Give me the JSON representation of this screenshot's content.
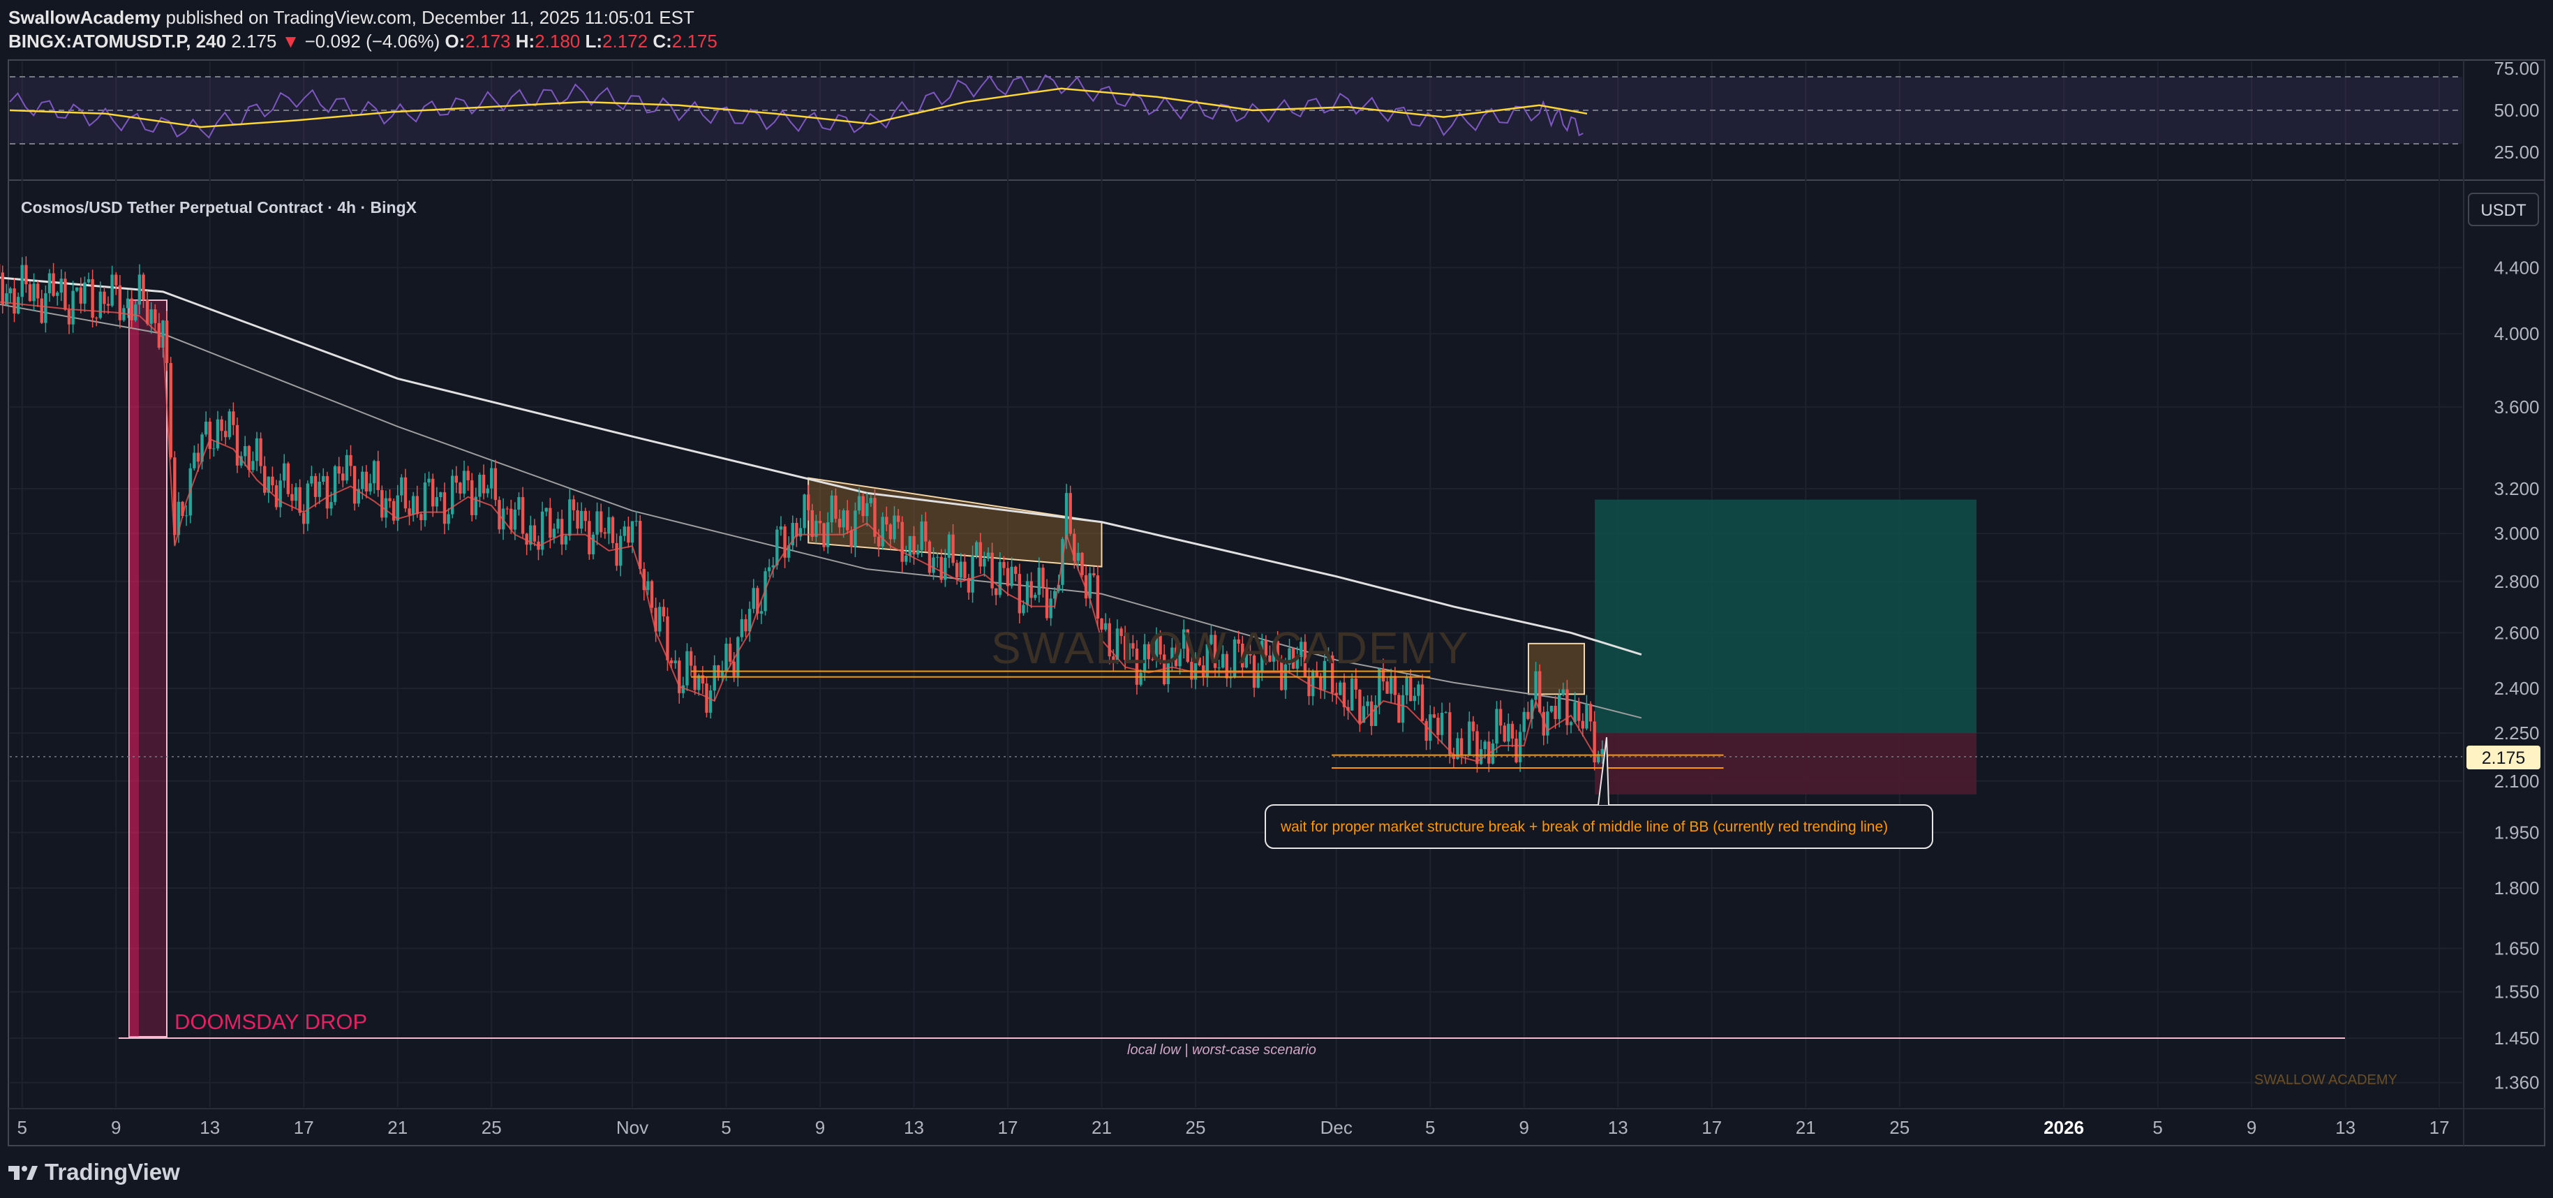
{
  "header": {
    "author": "SwallowAcademy",
    "published_text": "published on TradingView.com, December 11, 2025 11:05:01 EST",
    "symbol": "BINGX:ATOMUSDT.P, 240",
    "last": "2.175",
    "change_arrow": "▼",
    "change": "−0.092 (−4.06%)",
    "o_label": "O:",
    "o_value": "2.173",
    "h_label": "H:",
    "h_value": "2.180",
    "l_label": "L:",
    "l_value": "2.172",
    "c_label": "C:",
    "c_value": "2.175"
  },
  "footer": {
    "brand": "TradingView"
  },
  "colors": {
    "background": "#131722",
    "up": "#26a69a",
    "down": "#ef5350",
    "rsi": "#7e57c2",
    "rsi_ma": "#fdd835",
    "orange_line": "#ff9800",
    "doomsday": "#e91e63",
    "tp_zone": "#0f4f49",
    "sl_zone": "#4a1c2e"
  },
  "chart_data": [
    {
      "type": "line",
      "panel": "RSI",
      "ylim": [
        15,
        80
      ],
      "yticks": [
        "75.00",
        "50.00",
        "25.00"
      ],
      "levels": [
        70,
        50,
        30
      ],
      "series": [],
      "x": [
        0,
        10,
        20,
        30,
        40,
        50,
        60,
        70,
        80,
        90,
        100,
        110,
        120,
        130,
        140,
        150,
        160,
        165
      ],
      "rsi": [
        55,
        45,
        38,
        58,
        47,
        55,
        60,
        50,
        44,
        42,
        64,
        66,
        52,
        48,
        55,
        41,
        50,
        38
      ],
      "rsi_ma": [
        50,
        48,
        40,
        44,
        49,
        52,
        55,
        53,
        48,
        42,
        55,
        63,
        58,
        50,
        52,
        46,
        53,
        48
      ]
    },
    {
      "type": "line",
      "panel": "price",
      "title": "Cosmos/USD Tether Perpetual Contract · 4h · BingX",
      "scale": "log",
      "currency": "USDT",
      "ylim": [
        1.3,
        4.7
      ],
      "yticks": [
        "4.400",
        "4.000",
        "3.600",
        "3.200",
        "3.000",
        "2.800",
        "2.600",
        "2.400",
        "2.250",
        "2.100",
        "1.950",
        "1.800",
        "1.650",
        "1.550",
        "1.450",
        "1.360"
      ],
      "ytick_values": [
        4.4,
        4.0,
        3.6,
        3.2,
        3.0,
        2.8,
        2.6,
        2.4,
        2.25,
        2.1,
        1.95,
        1.8,
        1.65,
        1.55,
        1.45,
        1.36
      ],
      "xticks": [
        "5",
        "9",
        "13",
        "17",
        "21",
        "25",
        "Nov",
        "5",
        "9",
        "13",
        "17",
        "21",
        "25",
        "Dec",
        "5",
        "9",
        "13",
        "17",
        "21",
        "25",
        "2026",
        "5",
        "9",
        "13",
        "17"
      ],
      "xtick_days": [
        -26,
        -22,
        -18,
        -14,
        -10,
        -6,
        0,
        4,
        8,
        12,
        16,
        20,
        24,
        30,
        34,
        38,
        42,
        46,
        50,
        54,
        61,
        65,
        69,
        73,
        77
      ],
      "x_unit": "days from Nov 1, 2025",
      "price_series": {
        "x": [
          -28,
          -26,
          -24,
          -22,
          -21,
          -20,
          -19.5,
          -19.3,
          -19,
          -18.5,
          -18,
          -17,
          -16,
          -15,
          -14,
          -13,
          -12,
          -11,
          -10,
          -9,
          -8,
          -7,
          -6,
          -5,
          -4,
          -3,
          -2,
          -1,
          0,
          0.5,
          1,
          2,
          3,
          3.5,
          4,
          5,
          6,
          7,
          8,
          9,
          10,
          11,
          12,
          13,
          14,
          15,
          16,
          17,
          18,
          18.5,
          19,
          19.5,
          20,
          21,
          22,
          23,
          24,
          25,
          26,
          27,
          28,
          29,
          30,
          31,
          32,
          33,
          34,
          35,
          36,
          37,
          38,
          38.5,
          39,
          40,
          41,
          41.5
        ],
        "y": [
          4.28,
          4.25,
          4.22,
          4.2,
          4.18,
          4.05,
          3.0,
          3.1,
          3.2,
          3.35,
          3.5,
          3.45,
          3.3,
          3.2,
          3.15,
          3.22,
          3.27,
          3.2,
          3.12,
          3.15,
          3.15,
          3.22,
          3.18,
          3.05,
          3.0,
          3.05,
          3.05,
          2.98,
          3.0,
          2.85,
          2.65,
          2.45,
          2.42,
          2.4,
          2.5,
          2.65,
          2.9,
          3.05,
          3.05,
          3.05,
          3.1,
          3.0,
          2.95,
          2.9,
          2.85,
          2.88,
          2.8,
          2.75,
          2.75,
          3.05,
          2.9,
          2.78,
          2.62,
          2.52,
          2.5,
          2.52,
          2.5,
          2.5,
          2.5,
          2.5,
          2.5,
          2.45,
          2.42,
          2.32,
          2.4,
          2.38,
          2.3,
          2.22,
          2.2,
          2.25,
          2.25,
          2.4,
          2.3,
          2.35,
          2.22,
          2.175
        ]
      },
      "bb_upper": {
        "x": [
          -28,
          -20,
          -10,
          0,
          10,
          20,
          30,
          35,
          40,
          43
        ],
        "y": [
          4.35,
          4.25,
          3.75,
          3.45,
          3.18,
          3.05,
          2.82,
          2.7,
          2.6,
          2.52
        ]
      },
      "bb_middle": {
        "x": [
          -28,
          -20,
          -10,
          0,
          10,
          20,
          30,
          35,
          40,
          43
        ],
        "y": [
          4.2,
          4.0,
          3.5,
          3.1,
          2.85,
          2.75,
          2.5,
          2.42,
          2.36,
          2.3
        ]
      },
      "annotations": {
        "watermark": "SWALLOW ACADEMY",
        "watermark_small": "SWALLOW ACADEMY",
        "doomsday_label": "DOOMSDAY DROP",
        "local_low_label": "local low | worst-case scenario",
        "local_low_level": 1.45,
        "callout": "wait for proper market structure break + break of middle line of BB (currently red trending line)",
        "support_levels": [
          2.44,
          2.46
        ],
        "lower_support_levels": [
          2.14,
          2.18
        ],
        "long_position": {
          "entry": 2.25,
          "target": 3.15,
          "stop": 2.06
        },
        "last_price_label": "2.175"
      }
    }
  ]
}
